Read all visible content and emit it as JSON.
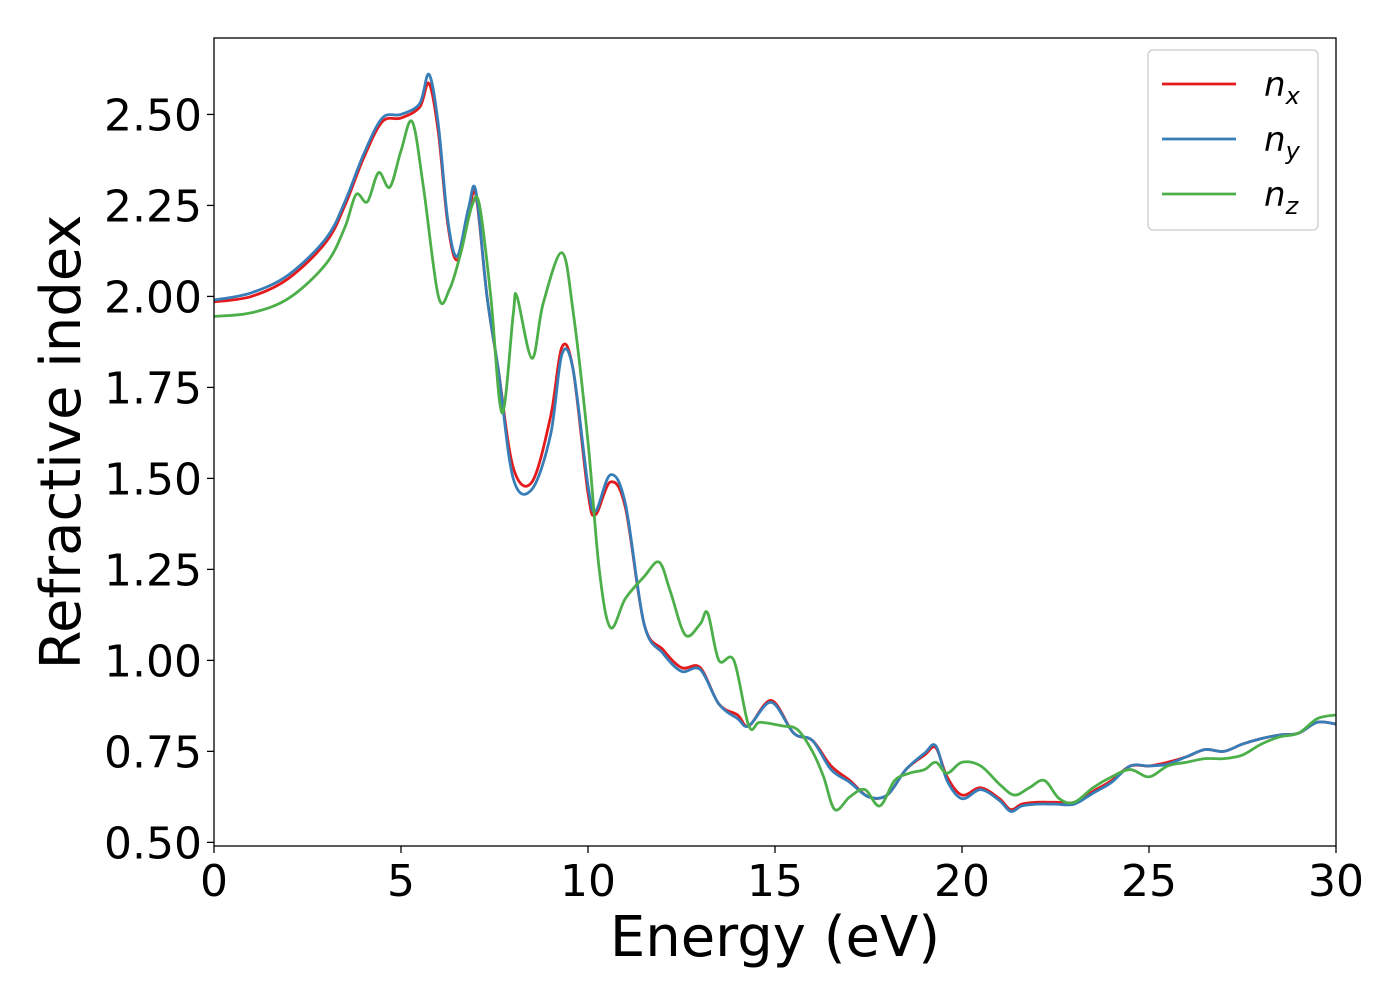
{
  "chart_data": {
    "type": "line",
    "title": "",
    "xlabel": "Energy (eV)",
    "ylabel": "Refractive index",
    "xlim": [
      0,
      30
    ],
    "ylim": [
      0.49,
      2.71
    ],
    "xticks": [
      0,
      5,
      10,
      15,
      20,
      25,
      30
    ],
    "xtick_labels": [
      "0",
      "5",
      "10",
      "15",
      "20",
      "25",
      "30"
    ],
    "yticks": [
      0.5,
      0.75,
      1.0,
      1.25,
      1.5,
      1.75,
      2.0,
      2.25,
      2.5
    ],
    "ytick_labels": [
      "0.50",
      "0.75",
      "1.00",
      "1.25",
      "1.50",
      "1.75",
      "2.00",
      "2.25",
      "2.50"
    ],
    "grid": false,
    "legend_position": "top-right",
    "series": [
      {
        "name": "n_x",
        "legend_main": "n",
        "legend_sub": "x",
        "color": "#e41a1c",
        "x": [
          0,
          1,
          2,
          3,
          3.5,
          4,
          4.5,
          5,
          5.5,
          5.75,
          6,
          6.25,
          6.5,
          6.8,
          7,
          7.3,
          7.6,
          8,
          8.5,
          9,
          9.3,
          9.6,
          10,
          10.2,
          10.6,
          11,
          11.5,
          12,
          12.5,
          13,
          13.5,
          14,
          14.3,
          14.9,
          15.5,
          16,
          16.5,
          17,
          17.5,
          18,
          18.5,
          19,
          19.3,
          19.6,
          20,
          20.5,
          21,
          21.3,
          21.6,
          22,
          22.5,
          23,
          23.5,
          24,
          24.5,
          25,
          25.5,
          26,
          26.5,
          27,
          27.5,
          28,
          28.5,
          29,
          29.5,
          30
        ],
        "y": [
          1.985,
          2.0,
          2.05,
          2.15,
          2.25,
          2.38,
          2.48,
          2.49,
          2.52,
          2.585,
          2.45,
          2.2,
          2.1,
          2.22,
          2.28,
          2.0,
          1.8,
          1.53,
          1.49,
          1.67,
          1.86,
          1.8,
          1.46,
          1.4,
          1.49,
          1.42,
          1.1,
          1.03,
          0.98,
          0.98,
          0.88,
          0.85,
          0.82,
          0.89,
          0.8,
          0.78,
          0.71,
          0.67,
          0.625,
          0.63,
          0.7,
          0.74,
          0.76,
          0.68,
          0.63,
          0.65,
          0.62,
          0.59,
          0.605,
          0.61,
          0.61,
          0.61,
          0.64,
          0.67,
          0.71,
          0.71,
          0.72,
          0.735,
          0.755,
          0.75,
          0.77,
          0.785,
          0.795,
          0.8,
          0.83,
          0.825
        ]
      },
      {
        "name": "n_y",
        "legend_main": "n",
        "legend_sub": "y",
        "color": "#377eb8",
        "x": [
          0,
          1,
          2,
          3,
          3.5,
          4,
          4.5,
          5,
          5.5,
          5.75,
          6,
          6.25,
          6.5,
          6.8,
          7,
          7.3,
          7.6,
          8,
          8.5,
          9,
          9.3,
          9.6,
          10,
          10.2,
          10.6,
          11,
          11.5,
          12,
          12.5,
          13,
          13.5,
          14,
          14.3,
          14.9,
          15.5,
          16,
          16.5,
          17,
          17.5,
          18,
          18.5,
          19,
          19.3,
          19.6,
          20,
          20.5,
          21,
          21.3,
          21.6,
          22,
          22.5,
          23,
          23.5,
          24,
          24.5,
          25,
          25.5,
          26,
          26.5,
          27,
          27.5,
          28,
          28.5,
          29,
          29.5,
          30
        ],
        "y": [
          1.99,
          2.01,
          2.06,
          2.16,
          2.26,
          2.39,
          2.49,
          2.5,
          2.53,
          2.61,
          2.47,
          2.21,
          2.11,
          2.24,
          2.29,
          2.0,
          1.8,
          1.5,
          1.47,
          1.62,
          1.84,
          1.8,
          1.48,
          1.41,
          1.51,
          1.43,
          1.1,
          1.02,
          0.97,
          0.975,
          0.88,
          0.84,
          0.82,
          0.885,
          0.8,
          0.78,
          0.7,
          0.665,
          0.625,
          0.63,
          0.7,
          0.745,
          0.765,
          0.67,
          0.62,
          0.645,
          0.615,
          0.585,
          0.6,
          0.605,
          0.605,
          0.605,
          0.635,
          0.665,
          0.71,
          0.71,
          0.715,
          0.735,
          0.755,
          0.75,
          0.77,
          0.785,
          0.795,
          0.8,
          0.83,
          0.825
        ]
      },
      {
        "name": "n_z",
        "legend_main": "n",
        "legend_sub": "z",
        "color": "#4daf4a",
        "x": [
          0,
          1,
          2,
          3,
          3.5,
          3.8,
          4.1,
          4.4,
          4.7,
          5,
          5.3,
          5.6,
          6,
          6.3,
          6.6,
          6.9,
          7.1,
          7.4,
          7.7,
          8,
          8.1,
          8.5,
          8.8,
          9.3,
          9.6,
          10,
          10.3,
          10.6,
          11,
          11.5,
          11.9,
          12.2,
          12.6,
          13,
          13.2,
          13.5,
          13.9,
          14.3,
          14.6,
          15.2,
          15.6,
          16,
          16.3,
          16.6,
          17,
          17.4,
          17.8,
          18.2,
          18.6,
          19,
          19.3,
          19.6,
          20,
          20.5,
          21,
          21.4,
          21.8,
          22.2,
          22.6,
          23,
          23.5,
          24,
          24.5,
          25,
          25.5,
          26,
          26.5,
          27,
          27.5,
          28,
          28.5,
          29,
          29.5,
          30
        ],
        "y": [
          1.945,
          1.955,
          1.995,
          2.09,
          2.19,
          2.28,
          2.26,
          2.34,
          2.3,
          2.4,
          2.48,
          2.3,
          2.0,
          2.02,
          2.12,
          2.25,
          2.25,
          2.0,
          1.68,
          1.95,
          2.0,
          1.83,
          1.98,
          2.12,
          1.96,
          1.6,
          1.25,
          1.09,
          1.17,
          1.23,
          1.27,
          1.19,
          1.07,
          1.1,
          1.13,
          1.0,
          1.0,
          0.82,
          0.83,
          0.82,
          0.81,
          0.75,
          0.68,
          0.59,
          0.625,
          0.645,
          0.6,
          0.67,
          0.69,
          0.7,
          0.72,
          0.69,
          0.72,
          0.71,
          0.66,
          0.63,
          0.65,
          0.67,
          0.62,
          0.61,
          0.65,
          0.68,
          0.7,
          0.68,
          0.71,
          0.72,
          0.73,
          0.73,
          0.74,
          0.77,
          0.79,
          0.8,
          0.84,
          0.85
        ]
      }
    ]
  }
}
